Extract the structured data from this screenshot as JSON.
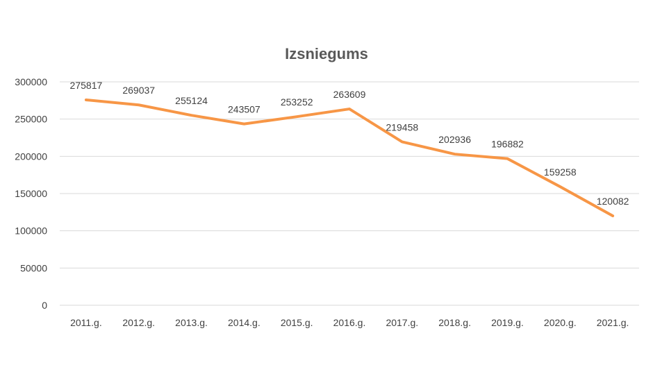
{
  "chart_data": {
    "type": "line",
    "title": "Izsniegums",
    "xlabel": "",
    "ylabel": "",
    "categories": [
      "2011.g.",
      "2012.g.",
      "2013.g.",
      "2014.g.",
      "2015.g.",
      "2016.g.",
      "2017.g.",
      "2018.g.",
      "2019.g.",
      "2020.g.",
      "2021.g."
    ],
    "series": [
      {
        "values": [
          275817,
          269037,
          255124,
          243507,
          253252,
          263609,
          219458,
          202936,
          196882,
          159258,
          120082
        ],
        "color": "#f79646"
      }
    ],
    "ylim": [
      0,
      300000
    ],
    "yticks": [
      0,
      50000,
      100000,
      150000,
      200000,
      250000,
      300000
    ],
    "grid": true,
    "legend": "none"
  }
}
